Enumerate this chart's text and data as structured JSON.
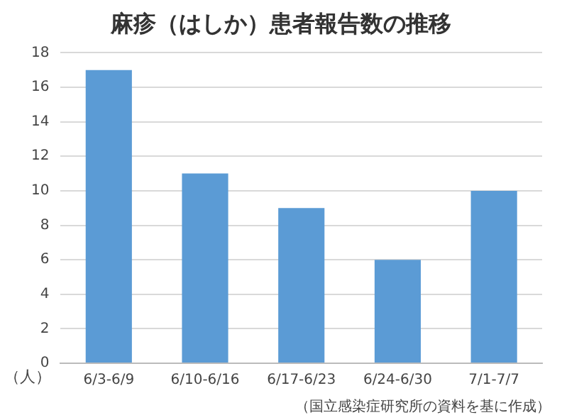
{
  "chart_data": {
    "type": "bar",
    "title": "麻疹（はしか）患者報告数の推移",
    "ylabel": "（人）",
    "categories": [
      "6/3-6/9",
      "6/10-6/16",
      "6/17-6/23",
      "6/24-6/30",
      "7/1-7/7"
    ],
    "values": [
      17,
      11,
      9,
      6,
      10
    ],
    "color": "#5b9bd5",
    "ylim": [
      0,
      18
    ],
    "yticks": [
      0,
      2,
      4,
      6,
      8,
      10,
      12,
      14,
      16,
      18
    ],
    "grid": "y",
    "annotations": [
      "（国立感染症研究所の資料を基に作成）"
    ]
  }
}
